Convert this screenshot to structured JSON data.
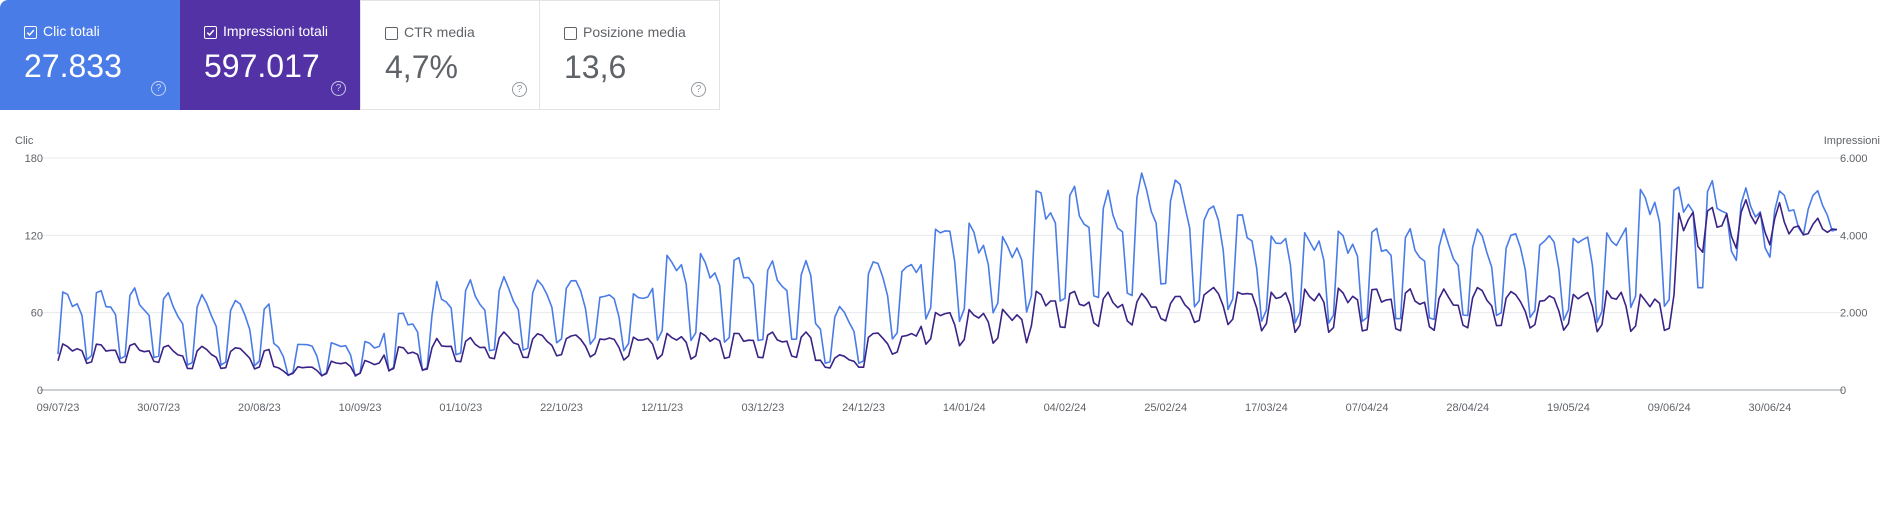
{
  "metrics": [
    {
      "label": "Clic totali",
      "value": "27.833",
      "checked": true,
      "color": "#4a7ce8"
    },
    {
      "label": "Impressioni totali",
      "value": "597.017",
      "checked": true,
      "color": "#5232a5"
    },
    {
      "label": "CTR media",
      "value": "4,7%",
      "checked": false
    },
    {
      "label": "Posizione media",
      "value": "13,6",
      "checked": false
    }
  ],
  "help_glyph": "?",
  "chart_data": {
    "type": "line",
    "left_axis_title": "Clic",
    "right_axis_title": "Impressioni",
    "left_ticks": [
      "0",
      "60",
      "120",
      "180"
    ],
    "right_ticks": [
      "0",
      "2.000",
      "4.000",
      "6.000"
    ],
    "ylim_left": [
      0,
      180
    ],
    "ylim_right": [
      0,
      6000
    ],
    "x_tick_labels": [
      "09/07/23",
      "30/07/23",
      "20/08/23",
      "10/09/23",
      "01/10/23",
      "22/10/23",
      "12/11/23",
      "03/12/23",
      "24/12/23",
      "14/01/24",
      "04/02/24",
      "25/02/24",
      "17/03/24",
      "07/04/24",
      "28/04/24",
      "19/05/24",
      "09/06/24",
      "30/06/24"
    ],
    "x_range": [
      "09/07/23",
      "14/07/24"
    ],
    "grid": true,
    "series": [
      {
        "name": "Clic",
        "axis": "left",
        "color": "#4a7ce8",
        "weekly_peaks": [
          76,
          76,
          72,
          70,
          38,
          38,
          60,
          82,
          85,
          88,
          78,
          106,
          102,
          97,
          64,
          102,
          133,
          118,
          155,
          150,
          165,
          148,
          125,
          124,
          125,
          122,
          125,
          125,
          126,
          158,
          160,
          153,
          155
        ],
        "weekly_lows": [
          18,
          18,
          12,
          12,
          8,
          8,
          10,
          20,
          22,
          28,
          25,
          32,
          30,
          30,
          14,
          30,
          45,
          55,
          58,
          60,
          65,
          50,
          45,
          45,
          45,
          44,
          45,
          45,
          45,
          55,
          68,
          95,
          110
        ]
      },
      {
        "name": "Impressioni",
        "axis": "right",
        "color": "#3b2386",
        "weekly_peaks": [
          1150,
          1150,
          1100,
          1100,
          620,
          750,
          1100,
          1300,
          1450,
          1450,
          1400,
          1450,
          1450,
          1450,
          900,
          1500,
          2100,
          2050,
          2500,
          2450,
          2450,
          2700,
          2600,
          2600,
          2600,
          2550,
          2650,
          2500,
          2600,
          2450,
          4650,
          4800,
          4400
        ],
        "weekly_lows": [
          650,
          650,
          450,
          450,
          350,
          350,
          450,
          650,
          700,
          750,
          700,
          750,
          750,
          750,
          500,
          800,
          1050,
          1150,
          1500,
          1550,
          1600,
          1500,
          1400,
          1400,
          1400,
          1400,
          1400,
          1400,
          1400,
          1450,
          3500,
          3600,
          3800
        ]
      }
    ]
  }
}
